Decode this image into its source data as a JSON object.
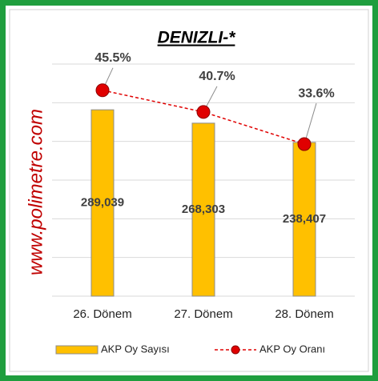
{
  "chart_data": {
    "type": "bar-line",
    "title": "DENIZLI-*",
    "watermark": "www.polimetre.com",
    "categories": [
      "26. Dönem",
      "27. Dönem",
      "28. Dönem"
    ],
    "series": [
      {
        "name": "AKP Oy Sayısı",
        "type": "bar",
        "color": "#ffc000",
        "values": [
          289039,
          268303,
          238407
        ],
        "value_labels": [
          "289,039",
          "268,303",
          "238,407"
        ]
      },
      {
        "name": "AKP Oy Oranı",
        "type": "line",
        "axis": "y2",
        "color": "#e00000",
        "values": [
          45.5,
          40.7,
          33.6
        ],
        "value_labels": [
          "45.5%",
          "40.7%",
          "33.6%"
        ]
      }
    ],
    "ylim": [
      0,
      360000
    ],
    "yticks": [
      0,
      60000,
      120000,
      180000,
      240000,
      300000,
      360000
    ],
    "y2lim": [
      0,
      51.3
    ],
    "grid": true,
    "legend": "bottom"
  }
}
